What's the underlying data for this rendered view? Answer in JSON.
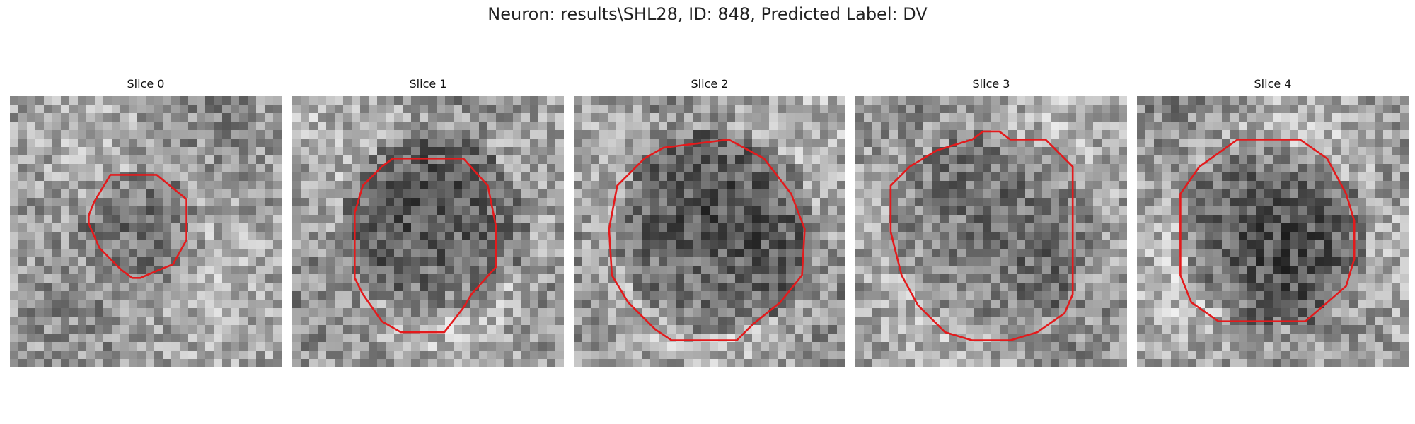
{
  "figure": {
    "title": "Neuron: results\\SHL28, ID: 848, Predicted Label: DV"
  },
  "contour_color": "#e31a1c",
  "slices": [
    {
      "title": "Slice 0",
      "seed": 11,
      "dark_center": [
        0.49,
        0.49
      ],
      "dark_radius": 0.23,
      "contrast": 0.35,
      "contour": [
        [
          0.37,
          0.29
        ],
        [
          0.54,
          0.29
        ],
        [
          0.65,
          0.38
        ],
        [
          0.65,
          0.53
        ],
        [
          0.6,
          0.62
        ],
        [
          0.55,
          0.64
        ],
        [
          0.48,
          0.67
        ],
        [
          0.45,
          0.67
        ],
        [
          0.41,
          0.64
        ],
        [
          0.33,
          0.56
        ],
        [
          0.29,
          0.47
        ],
        [
          0.29,
          0.44
        ],
        [
          0.31,
          0.39
        ]
      ]
    },
    {
      "title": "Slice 1",
      "seed": 23,
      "dark_center": [
        0.52,
        0.48
      ],
      "dark_radius": 0.34,
      "contrast": 0.65,
      "contour": [
        [
          0.37,
          0.23
        ],
        [
          0.63,
          0.23
        ],
        [
          0.72,
          0.33
        ],
        [
          0.75,
          0.48
        ],
        [
          0.75,
          0.63
        ],
        [
          0.66,
          0.73
        ],
        [
          0.63,
          0.78
        ],
        [
          0.56,
          0.87
        ],
        [
          0.4,
          0.87
        ],
        [
          0.33,
          0.83
        ],
        [
          0.26,
          0.73
        ],
        [
          0.23,
          0.67
        ],
        [
          0.23,
          0.43
        ],
        [
          0.26,
          0.33
        ],
        [
          0.33,
          0.26
        ]
      ]
    },
    {
      "title": "Slice 2",
      "seed": 37,
      "dark_center": [
        0.52,
        0.5
      ],
      "dark_radius": 0.37,
      "contrast": 0.7,
      "contour": [
        [
          0.33,
          0.19
        ],
        [
          0.57,
          0.16
        ],
        [
          0.7,
          0.23
        ],
        [
          0.8,
          0.36
        ],
        [
          0.85,
          0.49
        ],
        [
          0.84,
          0.66
        ],
        [
          0.76,
          0.76
        ],
        [
          0.66,
          0.84
        ],
        [
          0.6,
          0.9
        ],
        [
          0.36,
          0.9
        ],
        [
          0.3,
          0.86
        ],
        [
          0.2,
          0.76
        ],
        [
          0.14,
          0.66
        ],
        [
          0.13,
          0.49
        ],
        [
          0.16,
          0.33
        ],
        [
          0.26,
          0.23
        ]
      ]
    },
    {
      "title": "Slice 3",
      "seed": 51,
      "dark_center": [
        0.5,
        0.5
      ],
      "dark_radius": 0.37,
      "contrast": 0.4,
      "contour": [
        [
          0.3,
          0.2
        ],
        [
          0.43,
          0.16
        ],
        [
          0.47,
          0.13
        ],
        [
          0.53,
          0.13
        ],
        [
          0.57,
          0.16
        ],
        [
          0.7,
          0.16
        ],
        [
          0.8,
          0.26
        ],
        [
          0.8,
          0.36
        ],
        [
          0.8,
          0.73
        ],
        [
          0.77,
          0.8
        ],
        [
          0.67,
          0.87
        ],
        [
          0.57,
          0.9
        ],
        [
          0.43,
          0.9
        ],
        [
          0.33,
          0.87
        ],
        [
          0.23,
          0.77
        ],
        [
          0.17,
          0.66
        ],
        [
          0.13,
          0.5
        ],
        [
          0.13,
          0.33
        ],
        [
          0.2,
          0.26
        ]
      ]
    },
    {
      "title": "Slice 4",
      "seed": 67,
      "dark_center": [
        0.5,
        0.52
      ],
      "dark_radius": 0.34,
      "contrast": 0.6,
      "contour": [
        [
          0.37,
          0.16
        ],
        [
          0.6,
          0.16
        ],
        [
          0.7,
          0.23
        ],
        [
          0.77,
          0.36
        ],
        [
          0.8,
          0.46
        ],
        [
          0.8,
          0.6
        ],
        [
          0.77,
          0.7
        ],
        [
          0.62,
          0.83
        ],
        [
          0.3,
          0.83
        ],
        [
          0.2,
          0.76
        ],
        [
          0.16,
          0.66
        ],
        [
          0.16,
          0.36
        ],
        [
          0.23,
          0.26
        ]
      ]
    }
  ]
}
